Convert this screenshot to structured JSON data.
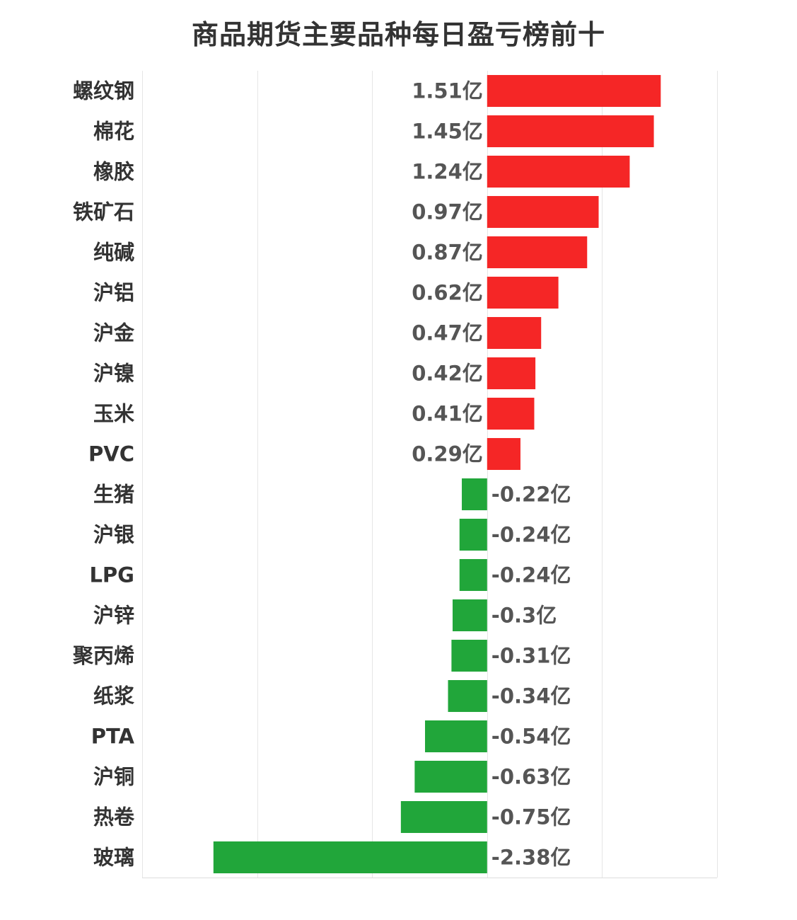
{
  "chart_data": {
    "type": "bar",
    "orientation": "horizontal",
    "title": "商品期货主要品种每日盈亏榜前十",
    "xlabel": "",
    "ylabel": "",
    "unit": "亿",
    "xlim": [
      -3,
      2
    ],
    "grid": true,
    "categories": [
      "螺纹钢",
      "棉花",
      "橡胶",
      "铁矿石",
      "纯碱",
      "沪铝",
      "沪金",
      "沪镍",
      "玉米",
      "PVC",
      "生猪",
      "沪银",
      "LPG",
      "沪锌",
      "聚丙烯",
      "纸浆",
      "PTA",
      "沪铜",
      "热卷",
      "玻璃"
    ],
    "values": [
      1.51,
      1.45,
      1.24,
      0.97,
      0.87,
      0.62,
      0.47,
      0.42,
      0.41,
      0.29,
      -0.22,
      -0.24,
      -0.24,
      -0.3,
      -0.31,
      -0.34,
      -0.54,
      -0.63,
      -0.75,
      -2.38
    ],
    "value_labels": [
      "1.51亿",
      "1.45亿",
      "1.24亿",
      "0.97亿",
      "0.87亿",
      "0.62亿",
      "0.47亿",
      "0.42亿",
      "0.41亿",
      "0.29亿",
      "-0.22亿",
      "-0.24亿",
      "-0.24亿",
      "-0.3亿",
      "-0.31亿",
      "-0.34亿",
      "-0.54亿",
      "-0.63亿",
      "-0.75亿",
      "-2.38亿"
    ],
    "colors": {
      "positive": "#f52626",
      "negative": "#21a63a"
    }
  }
}
